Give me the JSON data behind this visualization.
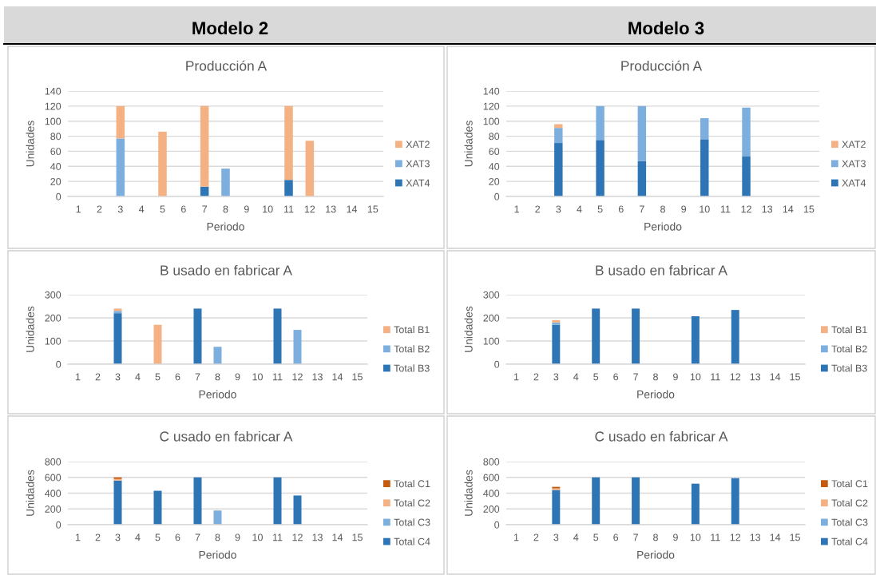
{
  "chart_data": [
    {
      "type": "other",
      "title": "Modelo 2"
    },
    {
      "type": "other",
      "title": "Modelo 3"
    },
    {
      "type": "bar",
      "title": "Producción A",
      "xlabel": "Periodo",
      "ylabel": "Unidades",
      "categories": [
        "1",
        "2",
        "3",
        "4",
        "5",
        "6",
        "7",
        "8",
        "9",
        "10",
        "11",
        "12",
        "13",
        "14",
        "15"
      ],
      "stacked": true,
      "series": [
        {
          "name": "XAT4",
          "color": "#2e75b6",
          "values": [
            null,
            null,
            null,
            null,
            null,
            null,
            13,
            null,
            null,
            null,
            22,
            null,
            null,
            null,
            null
          ]
        },
        {
          "name": "XAT3",
          "color": "#7cafdd",
          "values": [
            null,
            null,
            77,
            null,
            null,
            null,
            null,
            37,
            null,
            null,
            null,
            null,
            null,
            null,
            null
          ]
        },
        {
          "name": "XAT2",
          "color": "#f4b183",
          "values": [
            null,
            null,
            43,
            null,
            86,
            null,
            107,
            null,
            null,
            null,
            98,
            74,
            null,
            null,
            null
          ]
        }
      ],
      "ylim": [
        0,
        140
      ],
      "yticks": [
        0,
        20,
        40,
        60,
        80,
        100,
        120,
        140
      ],
      "grid": "y",
      "legend": "right"
    },
    {
      "type": "bar",
      "title": "Producción A",
      "xlabel": "Periodo",
      "ylabel": "Unidades",
      "categories": [
        "1",
        "2",
        "3",
        "4",
        "5",
        "6",
        "7",
        "8",
        "9",
        "10",
        "11",
        "12",
        "13",
        "14",
        "15"
      ],
      "stacked": true,
      "series": [
        {
          "name": "XAT4",
          "color": "#2e75b6",
          "values": [
            null,
            null,
            71,
            null,
            75,
            null,
            47,
            null,
            null,
            76,
            null,
            53,
            null,
            null,
            null
          ]
        },
        {
          "name": "XAT3",
          "color": "#7cafdd",
          "values": [
            null,
            null,
            20,
            null,
            45,
            null,
            73,
            null,
            null,
            28,
            null,
            65,
            null,
            null,
            null
          ]
        },
        {
          "name": "XAT2",
          "color": "#f4b183",
          "values": [
            null,
            null,
            5,
            null,
            null,
            null,
            null,
            null,
            null,
            null,
            null,
            null,
            null,
            null,
            null
          ]
        }
      ],
      "ylim": [
        0,
        140
      ],
      "yticks": [
        0,
        20,
        40,
        60,
        80,
        100,
        120,
        140
      ],
      "grid": "y",
      "legend": "right"
    },
    {
      "type": "bar",
      "title": "B usado en fabricar A",
      "xlabel": "Periodo",
      "ylabel": "Unidades",
      "categories": [
        "1",
        "2",
        "3",
        "4",
        "5",
        "6",
        "7",
        "8",
        "9",
        "10",
        "11",
        "12",
        "13",
        "14",
        "15"
      ],
      "stacked": true,
      "series": [
        {
          "name": "Total B3",
          "color": "#2e75b6",
          "values": [
            null,
            null,
            220,
            null,
            null,
            null,
            240,
            null,
            null,
            null,
            240,
            null,
            null,
            null,
            null
          ]
        },
        {
          "name": "Total B2",
          "color": "#7cafdd",
          "values": [
            null,
            null,
            10,
            null,
            null,
            null,
            null,
            75,
            null,
            null,
            null,
            148,
            null,
            null,
            null
          ]
        },
        {
          "name": "Total B1",
          "color": "#f4b183",
          "values": [
            null,
            null,
            10,
            null,
            170,
            null,
            null,
            null,
            null,
            null,
            null,
            null,
            null,
            null,
            null
          ]
        }
      ],
      "ylim": [
        0,
        300
      ],
      "yticks": [
        0,
        100,
        200,
        300
      ],
      "grid": "y",
      "legend": "right"
    },
    {
      "type": "bar",
      "title": "B usado en fabricar A",
      "xlabel": "Periodo",
      "ylabel": "Unidades",
      "categories": [
        "1",
        "2",
        "3",
        "4",
        "5",
        "6",
        "7",
        "8",
        "9",
        "10",
        "11",
        "12",
        "13",
        "14",
        "15"
      ],
      "stacked": true,
      "series": [
        {
          "name": "Total B3",
          "color": "#2e75b6",
          "values": [
            null,
            null,
            170,
            null,
            240,
            null,
            240,
            null,
            null,
            207,
            null,
            234,
            null,
            null,
            null
          ]
        },
        {
          "name": "Total B2",
          "color": "#7cafdd",
          "values": [
            null,
            null,
            10,
            null,
            null,
            null,
            null,
            null,
            null,
            null,
            null,
            null,
            null,
            null,
            null
          ]
        },
        {
          "name": "Total B1",
          "color": "#f4b183",
          "values": [
            null,
            null,
            10,
            null,
            null,
            null,
            null,
            null,
            null,
            null,
            null,
            null,
            null,
            null,
            null
          ]
        }
      ],
      "ylim": [
        0,
        300
      ],
      "yticks": [
        0,
        100,
        200,
        300
      ],
      "grid": "y",
      "legend": "right"
    },
    {
      "type": "bar",
      "title": "C usado en fabricar A",
      "xlabel": "Periodo",
      "ylabel": "Unidades",
      "categories": [
        "1",
        "2",
        "3",
        "4",
        "5",
        "6",
        "7",
        "8",
        "9",
        "10",
        "11",
        "12",
        "13",
        "14",
        "15"
      ],
      "stacked": true,
      "series": [
        {
          "name": "Total C4",
          "color": "#2e75b6",
          "values": [
            null,
            null,
            560,
            null,
            430,
            null,
            600,
            null,
            null,
            null,
            600,
            370,
            null,
            null,
            null
          ]
        },
        {
          "name": "Total C3",
          "color": "#7cafdd",
          "values": [
            null,
            null,
            null,
            null,
            null,
            null,
            null,
            180,
            null,
            null,
            null,
            null,
            null,
            null,
            null
          ]
        },
        {
          "name": "Total C2",
          "color": "#f4b183",
          "values": [
            null,
            null,
            20,
            null,
            null,
            null,
            null,
            null,
            null,
            null,
            null,
            null,
            null,
            null,
            null
          ]
        },
        {
          "name": "Total C1",
          "color": "#c55a11",
          "values": [
            null,
            null,
            20,
            null,
            null,
            null,
            null,
            null,
            null,
            null,
            null,
            null,
            null,
            null,
            null
          ]
        }
      ],
      "ylim": [
        0,
        800
      ],
      "yticks": [
        0,
        200,
        400,
        600,
        800
      ],
      "grid": "y",
      "legend": "right"
    },
    {
      "type": "bar",
      "title": "C usado en fabricar A",
      "xlabel": "Periodo",
      "ylabel": "Unidades",
      "categories": [
        "1",
        "2",
        "3",
        "4",
        "5",
        "6",
        "7",
        "8",
        "9",
        "10",
        "11",
        "12",
        "13",
        "14",
        "15"
      ],
      "stacked": true,
      "series": [
        {
          "name": "Total C4",
          "color": "#2e75b6",
          "values": [
            null,
            null,
            440,
            null,
            600,
            null,
            600,
            null,
            null,
            520,
            null,
            590,
            null,
            null,
            null
          ]
        },
        {
          "name": "Total C3",
          "color": "#7cafdd",
          "values": [
            null,
            null,
            null,
            null,
            null,
            null,
            null,
            null,
            null,
            null,
            null,
            null,
            null,
            null,
            null
          ]
        },
        {
          "name": "Total C2",
          "color": "#f4b183",
          "values": [
            null,
            null,
            20,
            null,
            null,
            null,
            null,
            null,
            null,
            null,
            null,
            null,
            null,
            null,
            null
          ]
        },
        {
          "name": "Total C1",
          "color": "#c55a11",
          "values": [
            null,
            null,
            20,
            null,
            null,
            null,
            null,
            null,
            null,
            null,
            null,
            null,
            null,
            null,
            null
          ]
        }
      ],
      "ylim": [
        0,
        800
      ],
      "yticks": [
        0,
        200,
        400,
        600,
        800
      ],
      "grid": "y",
      "legend": "right"
    }
  ]
}
